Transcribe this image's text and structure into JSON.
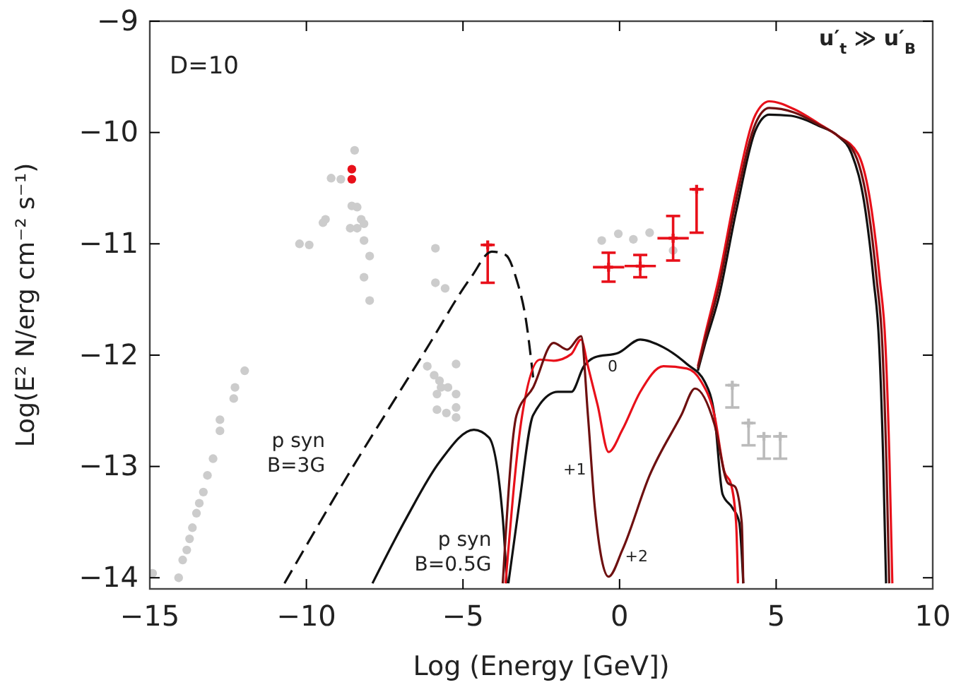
{
  "chart_data": {
    "type": "line",
    "xlabel": "Log (Energy [GeV])",
    "ylabel": "Log(E² N/erg cm⁻² s⁻¹)",
    "xlim": [
      -15,
      10
    ],
    "ylim": [
      -14.1,
      -9
    ],
    "xticks": [
      {
        "value": -15,
        "label": "−15"
      },
      {
        "value": -10,
        "label": "−10"
      },
      {
        "value": -5,
        "label": "−5"
      },
      0,
      5,
      10
    ],
    "yticks": [
      {
        "value": -14,
        "label": "−14"
      },
      {
        "value": -13,
        "label": "−13"
      },
      {
        "value": -12,
        "label": "−12"
      },
      {
        "value": -11,
        "label": "−11"
      },
      {
        "value": -10,
        "label": "−10"
      },
      {
        "value": -9,
        "label": "−9"
      }
    ],
    "annotations": [
      "D=10",
      "u′$_{t}$ ≫ u′$_{B}$",
      {
        "text": "p syn\nB=3G",
        "x": -8.68,
        "y": -13.08
      },
      {
        "text": "p syn\nB=0.5G",
        "x": -6.8,
        "y": -13.46
      },
      {
        "text": "0",
        "x": -0.04,
        "y": -11.98
      },
      {
        "text": "+1",
        "x": -0.35,
        "y": -12.87
      },
      {
        "text": "+2",
        "x": 0.09,
        "y": -13.75
      }
    ],
    "series": [
      {
        "type": "scatter",
        "marker": "circle",
        "color": "#cccccc",
        "x": [
          -14.91,
          -14.08,
          -13.95,
          -13.82,
          -13.73,
          -13.64,
          -13.51,
          -13.42,
          -13.29,
          -13.16,
          -12.98,
          -12.76,
          -12.76,
          -12.32,
          -12.28,
          -11.97,
          -10.22,
          -9.91,
          -9.47,
          -9.39,
          -9.21,
          -8.9,
          -8.46,
          -8.55,
          -8.38,
          -8.25,
          -8.6,
          -8.38,
          -8.16,
          -8.16,
          -7.98,
          -8.16,
          -7.98,
          -5.88,
          -5.88,
          -5.57,
          -6.14,
          -5.92,
          -5.75,
          -5.7,
          -5.83,
          -5.48,
          -5.22,
          -5.22,
          -5.83,
          -5.53,
          -5.22,
          -5.22,
          -0.57,
          -0.04,
          0.44,
          0.96,
          1.71
        ],
        "values": [
          -13.96,
          -14.0,
          -13.84,
          -13.75,
          -13.65,
          -13.55,
          -13.42,
          -13.33,
          -13.23,
          -13.08,
          -12.93,
          -12.68,
          -12.58,
          -12.39,
          -12.29,
          -12.14,
          -11.0,
          -11.01,
          -10.81,
          -10.78,
          -10.41,
          -10.42,
          -10.16,
          -10.66,
          -10.67,
          -10.78,
          -10.86,
          -10.86,
          -10.82,
          -10.97,
          -11.11,
          -11.3,
          -11.51,
          -11.04,
          -11.35,
          -11.4,
          -12.1,
          -12.18,
          -12.23,
          -12.29,
          -12.35,
          -12.29,
          -12.08,
          -12.35,
          -12.49,
          -12.52,
          -12.47,
          -12.56,
          -10.97,
          -10.91,
          -10.96,
          -10.9,
          -11.06
        ]
      },
      {
        "type": "scatter",
        "marker": "circle",
        "color": "#e8101a",
        "x": [
          -8.55,
          -8.55
        ],
        "values": [
          -10.33,
          -10.42
        ]
      },
      {
        "type": "scatter",
        "marker": "cross",
        "color": "#e8101a",
        "x": [
          -0.35,
          0.66,
          1.71
        ],
        "values": [
          -11.21,
          -11.2,
          -10.95
        ],
        "errors": [
          0.13,
          0.1,
          0.2
        ],
        "xerrors": [
          0.5,
          0.5,
          0.5
        ]
      },
      {
        "type": "scatter",
        "marker": "cross",
        "color": "#e8101a",
        "x": [
          -4.21,
          2.46
        ],
        "values": [
          -11.01,
          -10.51
        ],
        "errors": [
          [
            -11.35,
            -11.01
          ],
          [
            -10.9,
            -10.51
          ]
        ]
      },
      {
        "type": "scatter",
        "marker": "cross",
        "color": "#bbbbbb",
        "x": [
          3.6,
          4.12,
          4.61,
          5.13
        ],
        "values": [
          -12.27,
          -12.61,
          -12.73,
          -12.73
        ],
        "errors": [
          [
            -12.47,
            -12.27
          ],
          [
            -12.81,
            -12.61
          ],
          [
            -12.93,
            -12.73
          ],
          [
            -12.93,
            -12.73
          ]
        ]
      },
      {
        "marker": "none",
        "line_style": "dashed",
        "color": "#111111",
        "x": [
          -10.7,
          -8.68,
          -6.18,
          -4.74,
          -4.08,
          -3.64,
          -3.29,
          -2.98,
          -2.76
        ],
        "values": [
          -14.05,
          -13.08,
          -11.95,
          -11.3,
          -11.07,
          -11.1,
          -11.32,
          -11.7,
          -12.2
        ]
      },
      {
        "marker": "none",
        "line_style": "solid",
        "color": "#111111",
        "x": [
          -7.89,
          -6.8,
          -5.75,
          -4.65,
          -4.17,
          -3.73,
          -3.6
        ],
        "values": [
          -14.05,
          -13.46,
          -12.96,
          -12.67,
          -12.74,
          -13.46,
          -14.05
        ]
      },
      {
        "marker": "none",
        "line_style": "solid",
        "color": "#111111",
        "x": [
          -3.55,
          -3.2,
          -2.76,
          -1.97,
          -1.54,
          -1.14,
          -0.79,
          -0.04,
          0.66,
          1.4,
          2.15,
          2.72,
          3.03,
          3.29,
          3.6,
          3.82,
          3.95
        ],
        "values": [
          -14.05,
          -13.33,
          -12.54,
          -12.33,
          -12.33,
          -12.1,
          -12.02,
          -11.98,
          -11.86,
          -11.93,
          -12.08,
          -12.24,
          -12.54,
          -13.25,
          -13.37,
          -13.5,
          -14.05
        ]
      },
      {
        "marker": "none",
        "line_style": "solid",
        "color": "#e8101a",
        "x": [
          -3.64,
          -3.11,
          -2.54,
          -2.11,
          -1.54,
          -1.23,
          -1.01,
          -0.7,
          -0.35,
          0.09,
          0.66,
          1.4,
          2.15,
          2.59,
          3.03,
          3.35,
          3.55,
          3.72,
          3.78
        ],
        "values": [
          -14.05,
          -12.54,
          -12.04,
          -12.05,
          -11.99,
          -11.86,
          -12.1,
          -12.45,
          -12.87,
          -12.67,
          -12.33,
          -12.1,
          -12.12,
          -12.23,
          -12.54,
          -13.05,
          -13.15,
          -13.5,
          -14.05
        ]
      },
      {
        "marker": "none",
        "line_style": "solid",
        "color": "#6e1010",
        "x": [
          -3.73,
          -3.29,
          -2.76,
          -2.11,
          -1.67,
          -1.23,
          -1.01,
          -0.79,
          -0.35,
          0.09,
          0.96,
          1.97,
          2.41,
          3.03,
          3.46,
          3.68,
          3.9,
          3.95
        ],
        "values": [
          -14.05,
          -12.54,
          -12.29,
          -11.89,
          -11.95,
          -11.83,
          -12.54,
          -13.37,
          -13.99,
          -13.75,
          -13.08,
          -12.54,
          -12.3,
          -12.62,
          -13.15,
          -13.18,
          -13.5,
          -14.05
        ]
      },
      {
        "marker": "none",
        "line_style": "solid",
        "color": "#111111",
        "x": [
          2.5,
          2.72,
          3.16,
          3.73,
          4.34,
          4.78,
          5.48,
          6.36,
          6.97,
          7.41,
          7.85,
          8.11,
          8.29,
          8.42,
          8.51
        ],
        "values": [
          -12.14,
          -11.91,
          -11.49,
          -10.7,
          -9.98,
          -9.84,
          -9.85,
          -9.94,
          -10.03,
          -10.19,
          -10.7,
          -11.32,
          -11.91,
          -12.96,
          -14.05
        ]
      },
      {
        "marker": "none",
        "line_style": "solid",
        "color": "#e8101a",
        "x": [
          2.5,
          2.72,
          3.16,
          3.73,
          4.34,
          4.78,
          5.57,
          6.36,
          6.97,
          7.61,
          8.05,
          8.31,
          8.49,
          8.62,
          8.71
        ],
        "values": [
          -12.1,
          -11.83,
          -11.32,
          -10.51,
          -9.84,
          -9.72,
          -9.79,
          -9.92,
          -10.03,
          -10.19,
          -10.7,
          -11.32,
          -11.91,
          -12.96,
          -14.05
        ]
      },
      {
        "marker": "none",
        "line_style": "solid",
        "color": "#6e1010",
        "x": [
          2.5,
          2.72,
          3.16,
          3.73,
          4.34,
          4.78,
          5.57,
          6.36,
          6.97,
          7.51,
          7.95,
          8.21,
          8.39,
          8.52,
          8.61
        ],
        "values": [
          -12.12,
          -11.87,
          -11.4,
          -10.6,
          -9.92,
          -9.78,
          -9.82,
          -9.93,
          -10.03,
          -10.19,
          -10.7,
          -11.32,
          -11.91,
          -12.96,
          -14.05
        ]
      }
    ]
  }
}
